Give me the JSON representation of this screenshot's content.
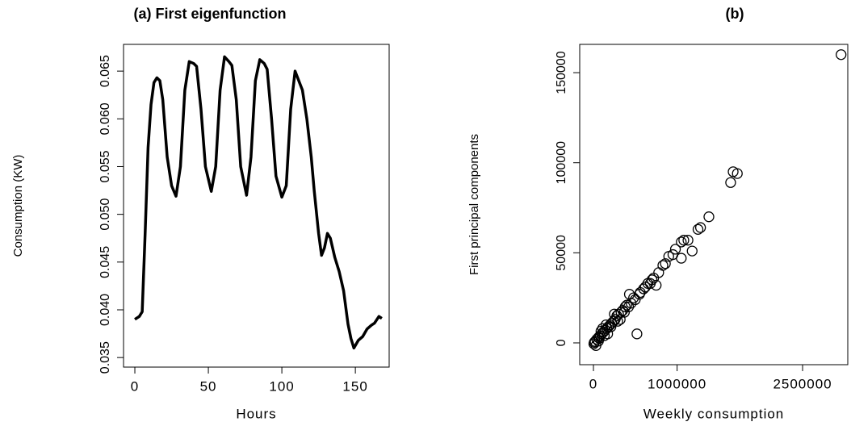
{
  "chart_data": [
    {
      "type": "line",
      "title": "(a) First eigenfunction",
      "xlabel": "Hours",
      "ylabel": "Consumption (KW)",
      "series": [
        {
          "color": "#000000",
          "x": [
            0,
            3,
            5,
            7,
            9,
            11,
            13,
            15,
            17,
            19,
            22,
            25,
            28,
            31,
            34,
            37,
            40,
            42,
            45,
            48,
            52,
            55,
            58,
            61,
            64,
            66,
            69,
            72,
            76,
            79,
            82,
            85,
            88,
            90,
            93,
            96,
            100,
            103,
            106,
            109,
            112,
            114,
            117,
            120,
            122,
            125,
            127,
            129,
            131,
            133,
            136,
            139,
            142,
            145,
            147,
            149,
            152,
            155,
            158,
            161,
            163,
            166,
            168
          ],
          "values": [
            0.039,
            0.0393,
            0.0398,
            0.048,
            0.057,
            0.0615,
            0.0638,
            0.0643,
            0.064,
            0.062,
            0.056,
            0.053,
            0.0519,
            0.055,
            0.063,
            0.066,
            0.0658,
            0.0655,
            0.061,
            0.055,
            0.0524,
            0.055,
            0.063,
            0.0665,
            0.066,
            0.0656,
            0.062,
            0.055,
            0.052,
            0.056,
            0.064,
            0.0662,
            0.0658,
            0.0652,
            0.06,
            0.054,
            0.0518,
            0.053,
            0.061,
            0.065,
            0.0638,
            0.063,
            0.06,
            0.056,
            0.0525,
            0.048,
            0.0457,
            0.0465,
            0.048,
            0.0475,
            0.0455,
            0.044,
            0.042,
            0.0385,
            0.037,
            0.036,
            0.0368,
            0.0372,
            0.038,
            0.0384,
            0.0386,
            0.0393,
            0.0391
          ]
        }
      ],
      "xlim": [
        -7.7,
        173
      ],
      "xticks": [
        0,
        50,
        100,
        150
      ],
      "ylim": [
        0.034,
        0.0678
      ],
      "yticks": [
        0.035,
        {
          "value": 0.04,
          "label": "0.040"
        },
        0.045,
        {
          "value": 0.05,
          "label": "0.050"
        },
        0.055,
        {
          "value": 0.06,
          "label": "0.060"
        },
        0.065
      ]
    },
    {
      "type": "scatter",
      "title": "(b)",
      "xlabel": "Weekly consumption",
      "ylabel": "First principal components",
      "color": "#000000",
      "x": [
        2960000,
        1640000,
        1670000,
        1720000,
        1380000,
        1250000,
        1280000,
        1080000,
        1050000,
        1130000,
        1180000,
        900000,
        950000,
        1050000,
        780000,
        830000,
        750000,
        700000,
        650000,
        600000,
        560000,
        520000,
        430000,
        480000,
        450000,
        400000,
        380000,
        350000,
        330000,
        300000,
        280000,
        260000,
        240000,
        220000,
        200000,
        180000,
        160000,
        140000,
        120000,
        100000,
        80000,
        60000,
        40000,
        20000,
        10000,
        5000,
        150000,
        250000,
        320000,
        370000,
        420000,
        500000,
        550000,
        620000,
        680000,
        720000,
        860000,
        980000,
        60000,
        90000,
        130000,
        210000,
        290000,
        30000,
        70000,
        110000,
        170000
      ],
      "values": [
        160000,
        89000,
        95000,
        94000,
        70000,
        63000,
        64000,
        57000,
        56000,
        57000,
        51000,
        48000,
        49000,
        47000,
        39000,
        43000,
        32000,
        35000,
        33000,
        30000,
        28000,
        5000,
        27000,
        25000,
        22000,
        21000,
        20000,
        18000,
        17000,
        16000,
        15000,
        13000,
        12000,
        11000,
        10000,
        9000,
        8000,
        7000,
        6000,
        5000,
        4000,
        3000,
        2000,
        800,
        300,
        -500,
        10000,
        16000,
        13000,
        17000,
        20000,
        24000,
        27000,
        31000,
        33000,
        36000,
        44000,
        52000,
        1000,
        6500,
        4000,
        9000,
        12000,
        -1500,
        2500,
        8000,
        5000
      ],
      "xlim": [
        -164000,
        3040000
      ],
      "xticks": [
        0,
        1000000,
        2500000
      ],
      "ylim": [
        -12100,
        165700
      ],
      "yticks": [
        0,
        50000,
        100000,
        150000
      ]
    }
  ]
}
